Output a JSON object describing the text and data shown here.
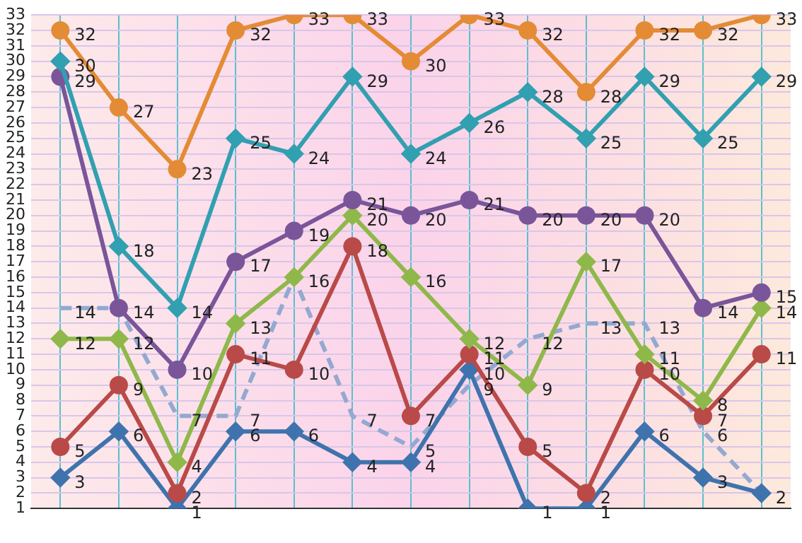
{
  "chart_data": {
    "type": "line",
    "categories": [
      null,
      null,
      null,
      null,
      null,
      null,
      null,
      null,
      null,
      null,
      null,
      null,
      null
    ],
    "series": [
      {
        "color": "#e48b35",
        "marker": "circle",
        "values": [
          32,
          27,
          23,
          32,
          33,
          33,
          30,
          33,
          32,
          28,
          32,
          32,
          33
        ]
      },
      {
        "color": "#31a0b0",
        "marker": "diamond",
        "values": [
          30,
          18,
          14,
          25,
          24,
          29,
          24,
          26,
          28,
          25,
          29,
          25,
          29
        ]
      },
      {
        "color": "#7a559a",
        "marker": "circle",
        "values": [
          29,
          14,
          10,
          17,
          19,
          21,
          20,
          21,
          20,
          20,
          20,
          14,
          15
        ]
      },
      {
        "color": "#8fb84a",
        "marker": "diamond",
        "values": [
          12,
          12,
          4,
          13,
          16,
          20,
          16,
          12,
          9,
          17,
          11,
          8,
          14
        ]
      },
      {
        "color": "#b94a48",
        "marker": "circle",
        "values": [
          5,
          9,
          2,
          11,
          10,
          18,
          7,
          11,
          5,
          2,
          10,
          7,
          11
        ]
      },
      {
        "color": "#3f73ad",
        "marker": "diamond",
        "values": [
          3,
          6,
          1,
          6,
          6,
          4,
          4,
          10,
          1,
          1,
          6,
          3,
          2
        ]
      },
      {
        "color": "#93a9d1",
        "marker": "none",
        "line_style": "dashed",
        "values": [
          14,
          14,
          7,
          7,
          16,
          7,
          5,
          9,
          12,
          13,
          13,
          6,
          2
        ],
        "value_labels": [
          "14",
          null,
          "7",
          "7",
          null,
          "7",
          "5",
          "9",
          "12",
          "13",
          "13",
          "6",
          null
        ]
      }
    ],
    "ylim": [
      1,
      33
    ],
    "yticks": [
      1,
      2,
      3,
      4,
      5,
      6,
      7,
      8,
      9,
      10,
      11,
      12,
      13,
      14,
      15,
      16,
      17,
      18,
      19,
      20,
      21,
      22,
      23,
      24,
      25,
      26,
      27,
      28,
      29,
      30,
      31,
      32,
      33
    ],
    "grid": true,
    "data_labels": true,
    "legend": false
  }
}
